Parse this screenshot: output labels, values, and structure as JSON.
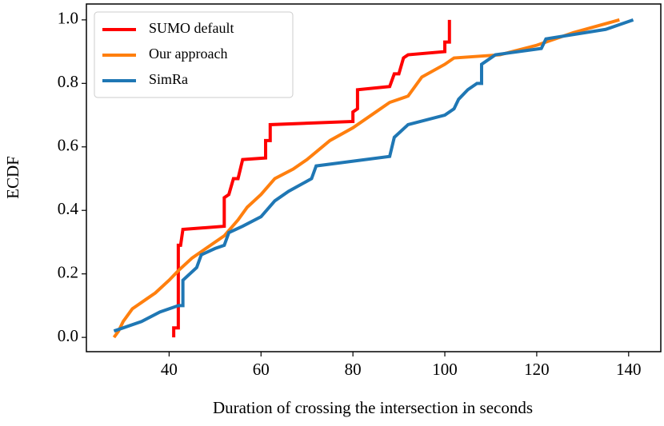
{
  "chart_data": {
    "type": "line",
    "xlabel": "Duration of crossing the intersection in seconds",
    "ylabel": "ECDF",
    "xlim": [
      22,
      147
    ],
    "ylim": [
      -0.045,
      1.05
    ],
    "xticks": [
      40,
      60,
      80,
      100,
      120,
      140
    ],
    "yticks": [
      {
        "value": 0,
        "label": "0.0"
      },
      0.2,
      0.4,
      0.6,
      0.8,
      {
        "value": 1,
        "label": "1.0"
      }
    ],
    "legend": "upper left",
    "series": [
      {
        "name": "SUMO default",
        "color": "#ff0000",
        "x": [
          41,
          41,
          42,
          42,
          42.5,
          43,
          52,
          52,
          53,
          54,
          55,
          56,
          61,
          61,
          62,
          62,
          80,
          80,
          81,
          81,
          88,
          89,
          90,
          91,
          92,
          100,
          100,
          101,
          101
        ],
        "values": [
          0,
          0.03,
          0.03,
          0.29,
          0.29,
          0.34,
          0.35,
          0.44,
          0.45,
          0.5,
          0.5,
          0.56,
          0.565,
          0.62,
          0.62,
          0.67,
          0.68,
          0.71,
          0.72,
          0.78,
          0.79,
          0.83,
          0.83,
          0.88,
          0.89,
          0.9,
          0.93,
          0.93,
          1.0
        ]
      },
      {
        "name": "Our approach",
        "color": "#ff7f0e",
        "x": [
          28,
          29,
          30,
          31,
          32,
          33,
          35,
          37,
          40,
          42,
          45,
          48,
          52,
          55,
          57,
          60,
          63,
          67,
          70,
          75,
          80,
          85,
          88,
          92,
          95,
          100,
          102,
          112,
          120,
          128,
          138
        ],
        "values": [
          0,
          0.02,
          0.05,
          0.07,
          0.09,
          0.1,
          0.12,
          0.14,
          0.18,
          0.21,
          0.25,
          0.28,
          0.32,
          0.37,
          0.41,
          0.45,
          0.5,
          0.53,
          0.56,
          0.62,
          0.66,
          0.71,
          0.74,
          0.76,
          0.82,
          0.86,
          0.88,
          0.89,
          0.92,
          0.96,
          1.0
        ]
      },
      {
        "name": "SimRa",
        "color": "#1f77b4",
        "x": [
          28,
          34,
          38,
          42,
          43,
          43,
          46,
          47,
          50,
          52,
          53,
          56,
          60,
          63,
          66,
          71,
          72,
          88,
          89,
          92,
          100,
          102,
          103,
          105,
          107,
          108,
          108,
          111,
          121,
          122,
          135,
          141
        ],
        "values": [
          0.02,
          0.05,
          0.08,
          0.1,
          0.1,
          0.18,
          0.22,
          0.26,
          0.28,
          0.29,
          0.33,
          0.35,
          0.38,
          0.43,
          0.46,
          0.5,
          0.54,
          0.57,
          0.63,
          0.67,
          0.7,
          0.72,
          0.75,
          0.78,
          0.8,
          0.8,
          0.86,
          0.89,
          0.91,
          0.94,
          0.97,
          1.0
        ]
      }
    ]
  }
}
